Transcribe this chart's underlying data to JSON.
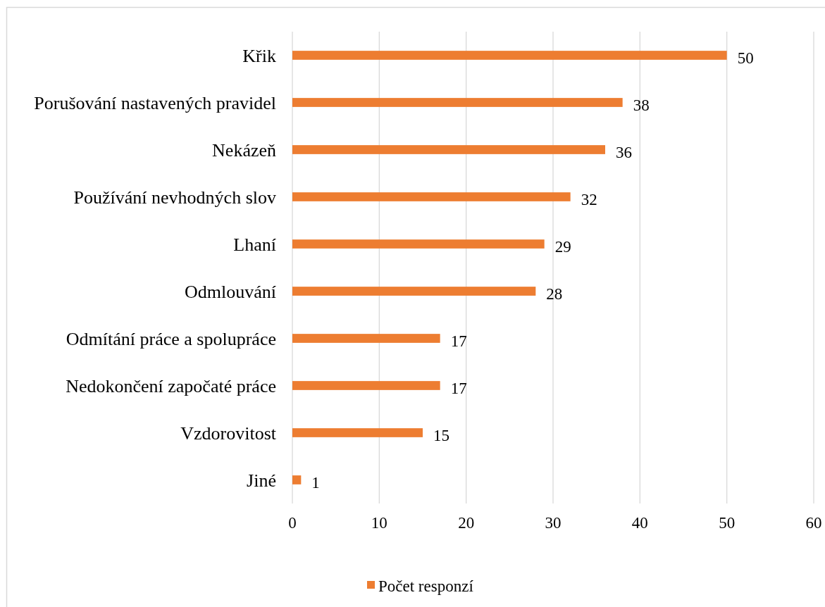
{
  "chart_data": {
    "type": "bar",
    "orientation": "horizontal",
    "categories": [
      "Křik",
      "Porušování nastavených pravidel",
      "Nekázeň",
      "Používání nevhodných slov",
      "Lhaní",
      "Odmlouvání",
      "Odmítání práce a spolupráce",
      "Nedokončení započaté práce",
      "Vzdorovitost",
      "Jiné"
    ],
    "series": [
      {
        "name": "Počet responzí",
        "color": "#ed7d31",
        "values": [
          50,
          38,
          36,
          32,
          29,
          28,
          17,
          17,
          15,
          1
        ]
      }
    ],
    "xlim": [
      0,
      60
    ],
    "xticks": [
      0,
      10,
      20,
      30,
      40,
      50,
      60
    ],
    "grid": "x",
    "legend": "bottom",
    "data_labels": true
  }
}
